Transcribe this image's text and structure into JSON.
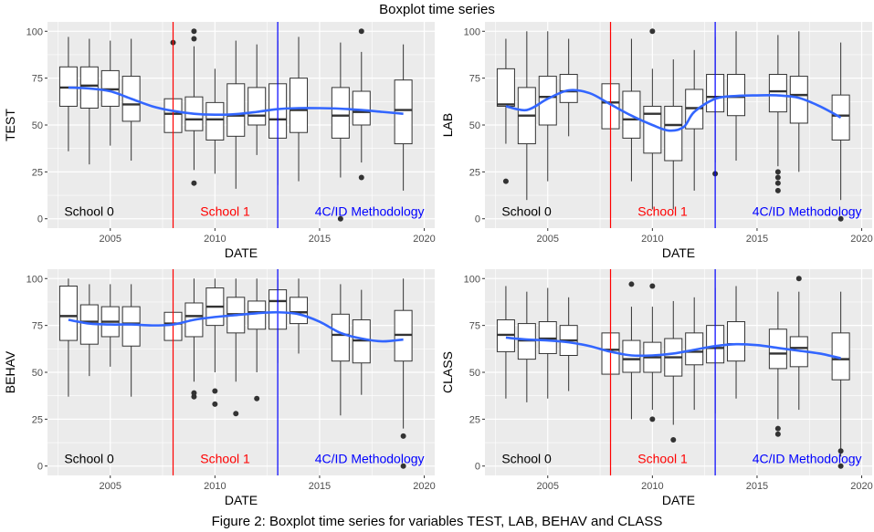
{
  "title": "Boxplot time series",
  "caption": "Figure 2: Boxplot time series for variables TEST, LAB, BEHAV and CLASS",
  "colors": {
    "panel_bg": "#EBEBEB",
    "grid": "#FFFFFF",
    "box": "#333333",
    "smooth": "#3366FF",
    "school1_line": "#FF0000",
    "method_line": "#0000FF"
  },
  "chart_data": [
    {
      "type": "boxplot",
      "xlabel": "DATE",
      "ylabel": "TEST",
      "xlim": [
        2002,
        2020.5
      ],
      "ylim": [
        -5,
        105
      ],
      "xticks": [
        2005,
        2010,
        2015,
        2020
      ],
      "yticks": [
        0,
        25,
        50,
        75,
        100
      ],
      "vlines": [
        2008,
        2013
      ],
      "annotations": [
        {
          "text": "School 0",
          "x": 2002.8,
          "y": 4,
          "color": "#000000",
          "anchor": "start"
        },
        {
          "text": "School 1",
          "x": 2009.3,
          "y": 4,
          "color": "#FF0000",
          "anchor": "start"
        },
        {
          "text": "4C/ID Methodology",
          "x": 2020.0,
          "y": 4,
          "color": "#0000FF",
          "anchor": "end"
        }
      ],
      "boxes": [
        {
          "x": 2003,
          "min": 36,
          "q1": 60,
          "median": 70,
          "q3": 81,
          "max": 97,
          "outliers": []
        },
        {
          "x": 2004,
          "min": 29,
          "q1": 59,
          "median": 71,
          "q3": 81,
          "max": 96,
          "outliers": []
        },
        {
          "x": 2005,
          "min": 39,
          "q1": 60,
          "median": 69,
          "q3": 79,
          "max": 95,
          "outliers": []
        },
        {
          "x": 2006,
          "min": 31,
          "q1": 52,
          "median": 61,
          "q3": 76,
          "max": 96,
          "outliers": []
        },
        {
          "x": 2008,
          "min": 28,
          "q1": 46,
          "median": 56,
          "q3": 64,
          "max": 82,
          "outliers": [
            94
          ]
        },
        {
          "x": 2009,
          "min": 26,
          "q1": 47,
          "median": 53,
          "q3": 65,
          "max": 92,
          "outliers": [
            100,
            96,
            19
          ]
        },
        {
          "x": 2010,
          "min": 24,
          "q1": 42,
          "median": 53,
          "q3": 62,
          "max": 80,
          "outliers": []
        },
        {
          "x": 2011,
          "min": 16,
          "q1": 44,
          "median": 55,
          "q3": 72,
          "max": 95,
          "outliers": []
        },
        {
          "x": 2012,
          "min": 34,
          "q1": 50,
          "median": 55,
          "q3": 70,
          "max": 93,
          "outliers": []
        },
        {
          "x": 2013,
          "min": 18,
          "q1": 43,
          "median": 53,
          "q3": 72,
          "max": 95,
          "outliers": []
        },
        {
          "x": 2014,
          "min": 20,
          "q1": 46,
          "median": 58,
          "q3": 75,
          "max": 97,
          "outliers": []
        },
        {
          "x": 2016,
          "min": 22,
          "q1": 43,
          "median": 55,
          "q3": 70,
          "max": 94,
          "outliers": [
            0
          ]
        },
        {
          "x": 2017,
          "min": 30,
          "q1": 50,
          "median": 57,
          "q3": 68,
          "max": 89,
          "outliers": [
            100,
            22
          ]
        },
        {
          "x": 2019,
          "min": 15,
          "q1": 40,
          "median": 58,
          "q3": 74,
          "max": 93,
          "outliers": []
        }
      ],
      "smooth": {
        "x": [
          2003,
          2004,
          2005,
          2006,
          2007,
          2008,
          2009,
          2010,
          2011,
          2012,
          2013,
          2014,
          2015,
          2016,
          2017,
          2018,
          2019
        ],
        "y": [
          70,
          69.5,
          68,
          64,
          60,
          57.5,
          56,
          55.5,
          55.8,
          57,
          58.5,
          59,
          59,
          58.7,
          58,
          57,
          56
        ]
      }
    },
    {
      "type": "boxplot",
      "xlabel": "DATE",
      "ylabel": "LAB",
      "xlim": [
        2002,
        2020.5
      ],
      "ylim": [
        -5,
        105
      ],
      "xticks": [
        2005,
        2010,
        2015,
        2020
      ],
      "yticks": [
        0,
        25,
        50,
        75,
        100
      ],
      "vlines": [
        2008,
        2013
      ],
      "annotations": [
        {
          "text": "School 0",
          "x": 2002.8,
          "y": 4,
          "color": "#000000",
          "anchor": "start"
        },
        {
          "text": "School 1",
          "x": 2009.3,
          "y": 4,
          "color": "#FF0000",
          "anchor": "start"
        },
        {
          "text": "4C/ID Methodology",
          "x": 2020.0,
          "y": 4,
          "color": "#0000FF",
          "anchor": "end"
        }
      ],
      "boxes": [
        {
          "x": 2003,
          "min": 40,
          "q1": 60,
          "median": 61,
          "q3": 80,
          "max": 96,
          "outliers": [
            20
          ]
        },
        {
          "x": 2004,
          "min": 10,
          "q1": 40,
          "median": 55,
          "q3": 70,
          "max": 100,
          "outliers": []
        },
        {
          "x": 2005,
          "min": 20,
          "q1": 50,
          "median": 65,
          "q3": 76,
          "max": 100,
          "outliers": []
        },
        {
          "x": 2006,
          "min": 44,
          "q1": 62,
          "median": 68,
          "q3": 77,
          "max": 96,
          "outliers": []
        },
        {
          "x": 2008,
          "min": 30,
          "q1": 48,
          "median": 62,
          "q3": 72,
          "max": 95,
          "outliers": []
        },
        {
          "x": 2009,
          "min": 20,
          "q1": 43,
          "median": 53,
          "q3": 68,
          "max": 96,
          "outliers": []
        },
        {
          "x": 2010,
          "min": 5,
          "q1": 35,
          "median": 56,
          "q3": 60,
          "max": 80,
          "outliers": [
            100
          ]
        },
        {
          "x": 2011,
          "min": 5,
          "q1": 31,
          "median": 50,
          "q3": 60,
          "max": 85,
          "outliers": []
        },
        {
          "x": 2012,
          "min": 15,
          "q1": 48,
          "median": 59,
          "q3": 69,
          "max": 90,
          "outliers": []
        },
        {
          "x": 2013,
          "min": 30,
          "q1": 57,
          "median": 65,
          "q3": 77,
          "max": 97,
          "outliers": [
            24
          ]
        },
        {
          "x": 2014,
          "min": 31,
          "q1": 55,
          "median": 65,
          "q3": 77,
          "max": 100,
          "outliers": []
        },
        {
          "x": 2016,
          "min": 28,
          "q1": 57,
          "median": 68,
          "q3": 77,
          "max": 98,
          "outliers": [
            25,
            22,
            19,
            15
          ]
        },
        {
          "x": 2017,
          "min": 25,
          "q1": 51,
          "median": 66,
          "q3": 76,
          "max": 100,
          "outliers": []
        },
        {
          "x": 2019,
          "min": 10,
          "q1": 42,
          "median": 55,
          "q3": 66,
          "max": 94,
          "outliers": [
            0
          ]
        }
      ],
      "smooth": {
        "x": [
          2003,
          2004,
          2005,
          2006,
          2007,
          2008,
          2009,
          2010,
          2010.8,
          2011.5,
          2012,
          2013,
          2014,
          2015,
          2016,
          2017,
          2018,
          2019
        ],
        "y": [
          60,
          58,
          64,
          68.5,
          67,
          61,
          55,
          50,
          47,
          49,
          57,
          64,
          65.5,
          65.8,
          65.8,
          64.5,
          60,
          54
        ]
      }
    },
    {
      "type": "boxplot",
      "xlabel": "DATE",
      "ylabel": "BEHAV",
      "xlim": [
        2002,
        2020.5
      ],
      "ylim": [
        -5,
        105
      ],
      "xticks": [
        2005,
        2010,
        2015,
        2020
      ],
      "yticks": [
        0,
        25,
        50,
        75,
        100
      ],
      "vlines": [
        2008,
        2013
      ],
      "annotations": [
        {
          "text": "School 0",
          "x": 2002.8,
          "y": 4,
          "color": "#000000",
          "anchor": "start"
        },
        {
          "text": "School 1",
          "x": 2009.3,
          "y": 4,
          "color": "#FF0000",
          "anchor": "start"
        },
        {
          "text": "4C/ID Methodology",
          "x": 2020.0,
          "y": 4,
          "color": "#0000FF",
          "anchor": "end"
        }
      ],
      "boxes": [
        {
          "x": 2003,
          "min": 37,
          "q1": 67,
          "median": 80,
          "q3": 96,
          "max": 100,
          "outliers": []
        },
        {
          "x": 2004,
          "min": 48,
          "q1": 65,
          "median": 77,
          "q3": 86,
          "max": 97,
          "outliers": []
        },
        {
          "x": 2005,
          "min": 53,
          "q1": 69,
          "median": 77,
          "q3": 85,
          "max": 97,
          "outliers": []
        },
        {
          "x": 2006,
          "min": 37,
          "q1": 64,
          "median": 76,
          "q3": 85,
          "max": 97,
          "outliers": []
        },
        {
          "x": 2008,
          "min": 54,
          "q1": 67,
          "median": 76,
          "q3": 82,
          "max": 96,
          "outliers": []
        },
        {
          "x": 2009,
          "min": 45,
          "q1": 69,
          "median": 80,
          "q3": 87,
          "max": 100,
          "outliers": [
            39,
            37
          ]
        },
        {
          "x": 2010,
          "min": 50,
          "q1": 75,
          "median": 85,
          "q3": 95,
          "max": 100,
          "outliers": [
            40,
            33
          ]
        },
        {
          "x": 2011,
          "min": 45,
          "q1": 71,
          "median": 81,
          "q3": 90,
          "max": 100,
          "outliers": [
            28
          ]
        },
        {
          "x": 2012,
          "min": 50,
          "q1": 73,
          "median": 82,
          "q3": 88,
          "max": 100,
          "outliers": [
            36
          ]
        },
        {
          "x": 2013,
          "min": 55,
          "q1": 73,
          "median": 88,
          "q3": 94,
          "max": 100,
          "outliers": []
        },
        {
          "x": 2014,
          "min": 60,
          "q1": 76,
          "median": 82,
          "q3": 90,
          "max": 100,
          "outliers": []
        },
        {
          "x": 2016,
          "min": 27,
          "q1": 56,
          "median": 70,
          "q3": 81,
          "max": 97,
          "outliers": []
        },
        {
          "x": 2017,
          "min": 38,
          "q1": 55,
          "median": 67,
          "q3": 78,
          "max": 94,
          "outliers": []
        },
        {
          "x": 2019,
          "min": 20,
          "q1": 56,
          "median": 70,
          "q3": 83,
          "max": 100,
          "outliers": [
            16,
            0
          ]
        }
      ],
      "smooth": {
        "x": [
          2003,
          2004,
          2005,
          2006,
          2007,
          2008,
          2009,
          2010,
          2011,
          2012,
          2013,
          2014,
          2015,
          2016,
          2017,
          2018,
          2019
        ],
        "y": [
          78,
          76,
          75.5,
          75.5,
          75,
          75.5,
          78,
          79.5,
          80.5,
          81.5,
          82,
          81,
          77,
          71,
          68,
          66.5,
          67.5
        ]
      }
    },
    {
      "type": "boxplot",
      "xlabel": "DATE",
      "ylabel": "CLASS",
      "xlim": [
        2002,
        2020.5
      ],
      "ylim": [
        -5,
        105
      ],
      "xticks": [
        2005,
        2010,
        2015,
        2020
      ],
      "yticks": [
        0,
        25,
        50,
        75,
        100
      ],
      "vlines": [
        2008,
        2013
      ],
      "annotations": [
        {
          "text": "School 0",
          "x": 2002.8,
          "y": 4,
          "color": "#000000",
          "anchor": "start"
        },
        {
          "text": "School 1",
          "x": 2009.3,
          "y": 4,
          "color": "#FF0000",
          "anchor": "start"
        },
        {
          "text": "4C/ID Methodology",
          "x": 2020.0,
          "y": 4,
          "color": "#0000FF",
          "anchor": "end"
        }
      ],
      "boxes": [
        {
          "x": 2003,
          "min": 36,
          "q1": 61,
          "median": 70,
          "q3": 78,
          "max": 96,
          "outliers": []
        },
        {
          "x": 2004,
          "min": 34,
          "q1": 57,
          "median": 67,
          "q3": 76,
          "max": 93,
          "outliers": []
        },
        {
          "x": 2005,
          "min": 36,
          "q1": 60,
          "median": 68,
          "q3": 77,
          "max": 95,
          "outliers": []
        },
        {
          "x": 2006,
          "min": 40,
          "q1": 59,
          "median": 67,
          "q3": 75,
          "max": 90,
          "outliers": []
        },
        {
          "x": 2008,
          "min": 30,
          "q1": 49,
          "median": 62,
          "q3": 71,
          "max": 92,
          "outliers": []
        },
        {
          "x": 2009,
          "min": 25,
          "q1": 50,
          "median": 57,
          "q3": 67,
          "max": 85,
          "outliers": [
            97
          ]
        },
        {
          "x": 2010,
          "min": 30,
          "q1": 50,
          "median": 58,
          "q3": 66,
          "max": 85,
          "outliers": [
            96,
            25
          ]
        },
        {
          "x": 2011,
          "min": 22,
          "q1": 48,
          "median": 58,
          "q3": 68,
          "max": 88,
          "outliers": [
            14
          ]
        },
        {
          "x": 2012,
          "min": 30,
          "q1": 54,
          "median": 61,
          "q3": 71,
          "max": 90,
          "outliers": []
        },
        {
          "x": 2013,
          "min": 28,
          "q1": 55,
          "median": 63,
          "q3": 75,
          "max": 95,
          "outliers": []
        },
        {
          "x": 2014,
          "min": 36,
          "q1": 56,
          "median": 65,
          "q3": 77,
          "max": 96,
          "outliers": []
        },
        {
          "x": 2016,
          "min": 25,
          "q1": 52,
          "median": 60,
          "q3": 73,
          "max": 93,
          "outliers": [
            20,
            17
          ]
        },
        {
          "x": 2017,
          "min": 30,
          "q1": 53,
          "median": 63,
          "q3": 69,
          "max": 93,
          "outliers": [
            100
          ]
        },
        {
          "x": 2019,
          "min": 5,
          "q1": 46,
          "median": 57,
          "q3": 71,
          "max": 93,
          "outliers": [
            8,
            0
          ]
        }
      ],
      "smooth": {
        "x": [
          2003,
          2004,
          2005,
          2006,
          2007,
          2008,
          2009,
          2010,
          2011,
          2012,
          2013,
          2014,
          2015,
          2016,
          2017,
          2018,
          2019
        ],
        "y": [
          68.5,
          67.5,
          67,
          66,
          64,
          61,
          59,
          59,
          60,
          62,
          64,
          65,
          64.5,
          63,
          61.5,
          60,
          57.5
        ]
      }
    }
  ]
}
